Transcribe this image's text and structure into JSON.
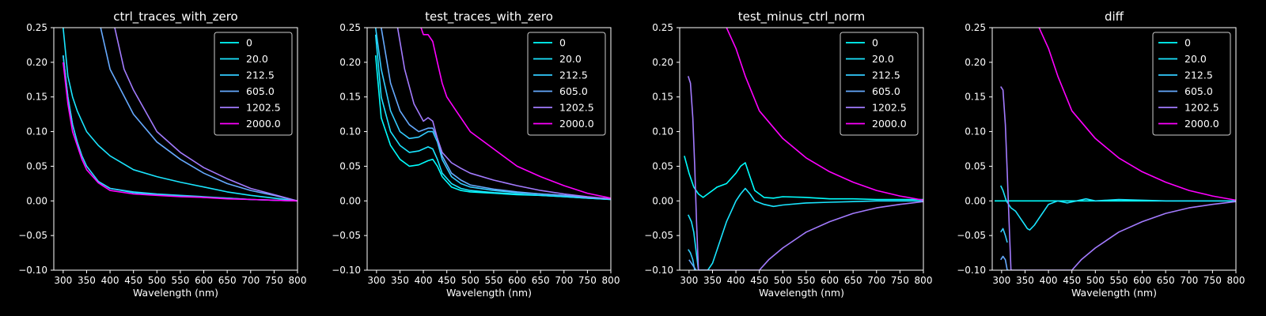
{
  "colors": {
    "background": "#000000",
    "axes": "#ffffff",
    "series": [
      "#00ffff",
      "#1ae5ff",
      "#33ccff",
      "#66aaff",
      "#a37bff",
      "#ff00ff"
    ]
  },
  "chart_data": [
    {
      "type": "line",
      "title": "ctrl_traces_with_zero",
      "xlabel": "Wavelength (nm)",
      "ylabel": "",
      "xlim": [
        280,
        800
      ],
      "ylim": [
        -0.1,
        0.25
      ],
      "xticks": [
        "300",
        "350",
        "400",
        "450",
        "500",
        "550",
        "600",
        "650",
        "700",
        "750",
        "800"
      ],
      "yticks": [
        "−0.10",
        "−0.05",
        "0.00",
        "0.05",
        "0.10",
        "0.15",
        "0.20",
        "0.25"
      ],
      "legend": "top-right",
      "series": [
        {
          "name": "0",
          "x": [
            300,
            310,
            320,
            330,
            340,
            350,
            375,
            400,
            450,
            500,
            550,
            600,
            650,
            700,
            750,
            800
          ],
          "y": [
            0.21,
            0.15,
            0.11,
            0.085,
            0.065,
            0.05,
            0.028,
            0.018,
            0.012,
            0.009,
            0.007,
            0.005,
            0.004,
            0.002,
            0.001,
            0.0
          ]
        },
        {
          "name": "20.0",
          "x": [
            300,
            310,
            320,
            330,
            340,
            350,
            375,
            400,
            450,
            500,
            550,
            600,
            650,
            700,
            750,
            800
          ],
          "y": [
            0.25,
            0.18,
            0.15,
            0.13,
            0.115,
            0.1,
            0.08,
            0.065,
            0.045,
            0.035,
            0.027,
            0.02,
            0.013,
            0.008,
            0.004,
            0.0
          ]
        },
        {
          "name": "212.5",
          "x": [
            300,
            310,
            320,
            330,
            340,
            350,
            375,
            400,
            450,
            500,
            550,
            600,
            650,
            700,
            750,
            800
          ],
          "y": [
            0.21,
            0.15,
            0.11,
            0.085,
            0.065,
            0.05,
            0.028,
            0.018,
            0.013,
            0.01,
            0.008,
            0.006,
            0.004,
            0.002,
            0.001,
            0.0
          ]
        },
        {
          "name": "605.0",
          "x": [
            380,
            400,
            450,
            500,
            550,
            600,
            650,
            700,
            750,
            800
          ],
          "y": [
            0.25,
            0.19,
            0.125,
            0.085,
            0.06,
            0.04,
            0.025,
            0.015,
            0.008,
            0.0
          ]
        },
        {
          "name": "1202.5",
          "x": [
            410,
            430,
            450,
            500,
            550,
            600,
            650,
            700,
            750,
            800
          ],
          "y": [
            0.25,
            0.19,
            0.16,
            0.1,
            0.07,
            0.048,
            0.032,
            0.018,
            0.009,
            0.0
          ]
        },
        {
          "name": "2000.0",
          "x": [
            300,
            310,
            320,
            330,
            340,
            350,
            375,
            400,
            450,
            500,
            550,
            600,
            650,
            700,
            750,
            800
          ],
          "y": [
            0.2,
            0.14,
            0.1,
            0.08,
            0.06,
            0.045,
            0.026,
            0.015,
            0.01,
            0.008,
            0.006,
            0.005,
            0.003,
            0.002,
            0.001,
            0.0
          ]
        }
      ]
    },
    {
      "type": "line",
      "title": "test_traces_with_zero",
      "xlabel": "Wavelength (nm)",
      "ylabel": "",
      "xlim": [
        280,
        800
      ],
      "ylim": [
        -0.1,
        0.25
      ],
      "xticks": [
        "300",
        "350",
        "400",
        "450",
        "500",
        "550",
        "600",
        "650",
        "700",
        "750",
        "800"
      ],
      "yticks": [
        "−0.10",
        "−0.05",
        "0.00",
        "0.05",
        "0.10",
        "0.15",
        "0.20",
        "0.25"
      ],
      "legend": "top-right",
      "series": [
        {
          "name": "0",
          "x": [
            298,
            310,
            330,
            350,
            370,
            390,
            410,
            420,
            430,
            440,
            460,
            480,
            500,
            550,
            600,
            650,
            700,
            750,
            800
          ],
          "y": [
            0.21,
            0.12,
            0.08,
            0.06,
            0.05,
            0.052,
            0.058,
            0.06,
            0.05,
            0.035,
            0.02,
            0.015,
            0.013,
            0.011,
            0.009,
            0.008,
            0.006,
            0.004,
            0.002
          ]
        },
        {
          "name": "20.0",
          "x": [
            298,
            310,
            330,
            350,
            370,
            390,
            410,
            420,
            430,
            440,
            460,
            480,
            500,
            550,
            600,
            650,
            700,
            750,
            800
          ],
          "y": [
            0.24,
            0.15,
            0.1,
            0.08,
            0.07,
            0.072,
            0.078,
            0.075,
            0.06,
            0.04,
            0.025,
            0.018,
            0.015,
            0.012,
            0.01,
            0.008,
            0.006,
            0.004,
            0.002
          ]
        },
        {
          "name": "212.5",
          "x": [
            298,
            310,
            330,
            350,
            370,
            390,
            410,
            420,
            430,
            440,
            460,
            480,
            500,
            550,
            600,
            650,
            700,
            750,
            800
          ],
          "y": [
            0.25,
            0.19,
            0.13,
            0.1,
            0.09,
            0.092,
            0.1,
            0.1,
            0.085,
            0.06,
            0.035,
            0.025,
            0.02,
            0.015,
            0.012,
            0.01,
            0.008,
            0.005,
            0.003
          ]
        },
        {
          "name": "605.0",
          "x": [
            310,
            330,
            350,
            370,
            390,
            410,
            420,
            430,
            440,
            460,
            480,
            500,
            550,
            600,
            650,
            700,
            750,
            800
          ],
          "y": [
            0.25,
            0.17,
            0.13,
            0.11,
            0.1,
            0.105,
            0.105,
            0.09,
            0.065,
            0.04,
            0.03,
            0.023,
            0.017,
            0.013,
            0.01,
            0.008,
            0.005,
            0.003
          ]
        },
        {
          "name": "1202.5",
          "x": [
            345,
            360,
            380,
            400,
            410,
            420,
            430,
            440,
            460,
            480,
            500,
            550,
            600,
            650,
            700,
            750,
            800
          ],
          "y": [
            0.25,
            0.19,
            0.14,
            0.115,
            0.12,
            0.115,
            0.09,
            0.07,
            0.055,
            0.047,
            0.04,
            0.03,
            0.022,
            0.015,
            0.01,
            0.006,
            0.003
          ]
        },
        {
          "name": "2000.0",
          "x": [
            395,
            400,
            410,
            420,
            430,
            440,
            450,
            470,
            500,
            550,
            600,
            650,
            700,
            750,
            800
          ],
          "y": [
            0.25,
            0.24,
            0.24,
            0.23,
            0.2,
            0.17,
            0.15,
            0.13,
            0.1,
            0.075,
            0.05,
            0.035,
            0.022,
            0.011,
            0.004
          ]
        }
      ]
    },
    {
      "type": "line",
      "title": "test_minus_ctrl_norm",
      "xlabel": "Wavelength (nm)",
      "ylabel": "",
      "xlim": [
        280,
        800
      ],
      "ylim": [
        -0.1,
        0.25
      ],
      "xticks": [
        "300",
        "350",
        "400",
        "450",
        "500",
        "550",
        "600",
        "650",
        "700",
        "750",
        "800"
      ],
      "yticks": [
        "−0.10",
        "−0.05",
        "0.00",
        "0.05",
        "0.10",
        "0.15",
        "0.20",
        "0.25"
      ],
      "legend": "top-right",
      "series": [
        {
          "name": "0",
          "x": [
            290,
            300,
            310,
            320,
            330,
            340,
            350,
            360,
            380,
            400,
            410,
            420,
            430,
            440,
            460,
            480,
            500,
            550,
            600,
            650,
            700,
            750,
            800
          ],
          "y": [
            0.065,
            0.04,
            0.02,
            0.01,
            0.005,
            0.01,
            0.015,
            0.02,
            0.025,
            0.04,
            0.05,
            0.055,
            0.035,
            0.015,
            0.005,
            0.004,
            0.006,
            0.005,
            0.003,
            0.003,
            0.002,
            0.002,
            0.002
          ]
        },
        {
          "name": "20.0",
          "x": [
            298,
            305,
            310,
            320,
            330,
            340,
            350,
            360,
            370,
            380,
            390,
            400,
            410,
            420,
            430,
            440,
            460,
            480,
            500,
            550,
            600,
            650,
            700,
            750,
            800
          ],
          "y": [
            -0.02,
            -0.03,
            -0.045,
            -0.1,
            -0.1,
            -0.1,
            -0.09,
            -0.07,
            -0.05,
            -0.03,
            -0.015,
            0.0,
            0.01,
            0.018,
            0.01,
            0.0,
            -0.005,
            -0.008,
            -0.006,
            -0.003,
            -0.002,
            -0.001,
            0.0,
            0.0,
            0.0
          ]
        },
        {
          "name": "212.5",
          "x": [
            298,
            303,
            308,
            312,
            316
          ],
          "y": [
            -0.07,
            -0.075,
            -0.085,
            -0.1,
            -0.1
          ]
        },
        {
          "name": "605.0",
          "x": [
            300,
            305,
            310,
            315
          ],
          "y": [
            -0.085,
            -0.09,
            -0.095,
            -0.1
          ]
        },
        {
          "name": "1202.5",
          "x": [
            298,
            303,
            308,
            312,
            316,
            320,
            450,
            470,
            500,
            550,
            600,
            650,
            700,
            750,
            800
          ],
          "y": [
            0.18,
            0.17,
            0.12,
            0.05,
            -0.03,
            -0.1,
            -0.1,
            -0.085,
            -0.068,
            -0.045,
            -0.03,
            -0.018,
            -0.01,
            -0.005,
            -0.001
          ]
        },
        {
          "name": "2000.0",
          "x": [
            380,
            400,
            420,
            450,
            500,
            550,
            600,
            650,
            700,
            750,
            800
          ],
          "y": [
            0.25,
            0.22,
            0.18,
            0.13,
            0.09,
            0.062,
            0.042,
            0.027,
            0.015,
            0.007,
            0.001
          ]
        }
      ]
    },
    {
      "type": "line",
      "title": "diff",
      "xlabel": "Wavelength (nm)",
      "ylabel": "",
      "xlim": [
        280,
        800
      ],
      "ylim": [
        -0.1,
        0.25
      ],
      "xticks": [
        "300",
        "350",
        "400",
        "450",
        "500",
        "550",
        "600",
        "650",
        "700",
        "750",
        "800"
      ],
      "yticks": [
        "−0.10",
        "−0.05",
        "0.00",
        "0.05",
        "0.10",
        "0.15",
        "0.20",
        "0.25"
      ],
      "legend": "top-right",
      "series": [
        {
          "name": "0",
          "x": [
            285,
            350,
            400,
            450,
            500,
            550,
            600,
            650,
            700,
            750,
            800
          ],
          "y": [
            0.0,
            0.0,
            0.0,
            0.0,
            0.0,
            0.0,
            0.0,
            0.0,
            0.0,
            0.0,
            0.0
          ]
        },
        {
          "name": "20.0",
          "x": [
            298,
            303,
            310,
            315,
            320,
            330,
            340,
            350,
            355,
            360,
            370,
            380,
            390,
            400,
            420,
            440,
            460,
            480,
            500,
            550,
            600,
            650,
            700,
            750,
            800
          ],
          "y": [
            0.022,
            0.015,
            0.0,
            -0.005,
            -0.01,
            -0.015,
            -0.025,
            -0.035,
            -0.04,
            -0.042,
            -0.035,
            -0.025,
            -0.015,
            -0.005,
            0.0,
            -0.003,
            0.0,
            0.003,
            0.0,
            0.002,
            0.001,
            0.0,
            0.0,
            0.0,
            0.0
          ]
        },
        {
          "name": "212.5",
          "x": [
            298,
            303,
            308,
            312
          ],
          "y": [
            -0.045,
            -0.04,
            -0.05,
            -0.06
          ]
        },
        {
          "name": "605.0",
          "x": [
            298,
            303,
            308,
            312,
            316
          ],
          "y": [
            -0.085,
            -0.08,
            -0.085,
            -0.1,
            -0.1
          ]
        },
        {
          "name": "1202.5",
          "x": [
            298,
            303,
            308,
            312,
            316,
            320,
            450,
            470,
            500,
            550,
            600,
            650,
            700,
            750,
            800
          ],
          "y": [
            0.165,
            0.16,
            0.11,
            0.04,
            -0.03,
            -0.1,
            -0.1,
            -0.085,
            -0.068,
            -0.045,
            -0.03,
            -0.018,
            -0.01,
            -0.005,
            -0.001
          ]
        },
        {
          "name": "2000.0",
          "x": [
            380,
            400,
            420,
            450,
            500,
            550,
            600,
            650,
            700,
            750,
            800
          ],
          "y": [
            0.25,
            0.22,
            0.18,
            0.13,
            0.09,
            0.062,
            0.042,
            0.027,
            0.015,
            0.007,
            0.001
          ]
        }
      ]
    }
  ]
}
